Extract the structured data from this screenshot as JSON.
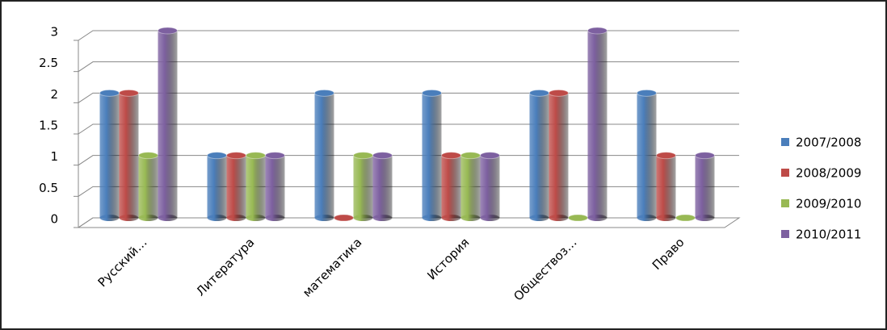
{
  "chart_data": {
    "type": "bar",
    "categories": [
      "Русский…",
      "Литература",
      "математика",
      "История",
      "Обществоз…",
      "Право"
    ],
    "series": [
      {
        "name": "2007/2008",
        "color": "#4a7ebb",
        "values": [
          2,
          1,
          2,
          2,
          2,
          2
        ]
      },
      {
        "name": "2008/2009",
        "color": "#be4b48",
        "values": [
          2,
          1,
          0,
          1,
          2,
          1
        ]
      },
      {
        "name": "2009/2010",
        "color": "#98b954",
        "values": [
          1,
          1,
          1,
          1,
          0,
          0
        ]
      },
      {
        "name": "2010/2011",
        "color": "#7d60a0",
        "values": [
          3,
          1,
          1,
          1,
          3,
          1
        ]
      }
    ],
    "ylim": [
      0,
      3
    ],
    "yticks": [
      0,
      0.5,
      1,
      1.5,
      2,
      2.5,
      3
    ],
    "grid": true,
    "legend": "right"
  }
}
